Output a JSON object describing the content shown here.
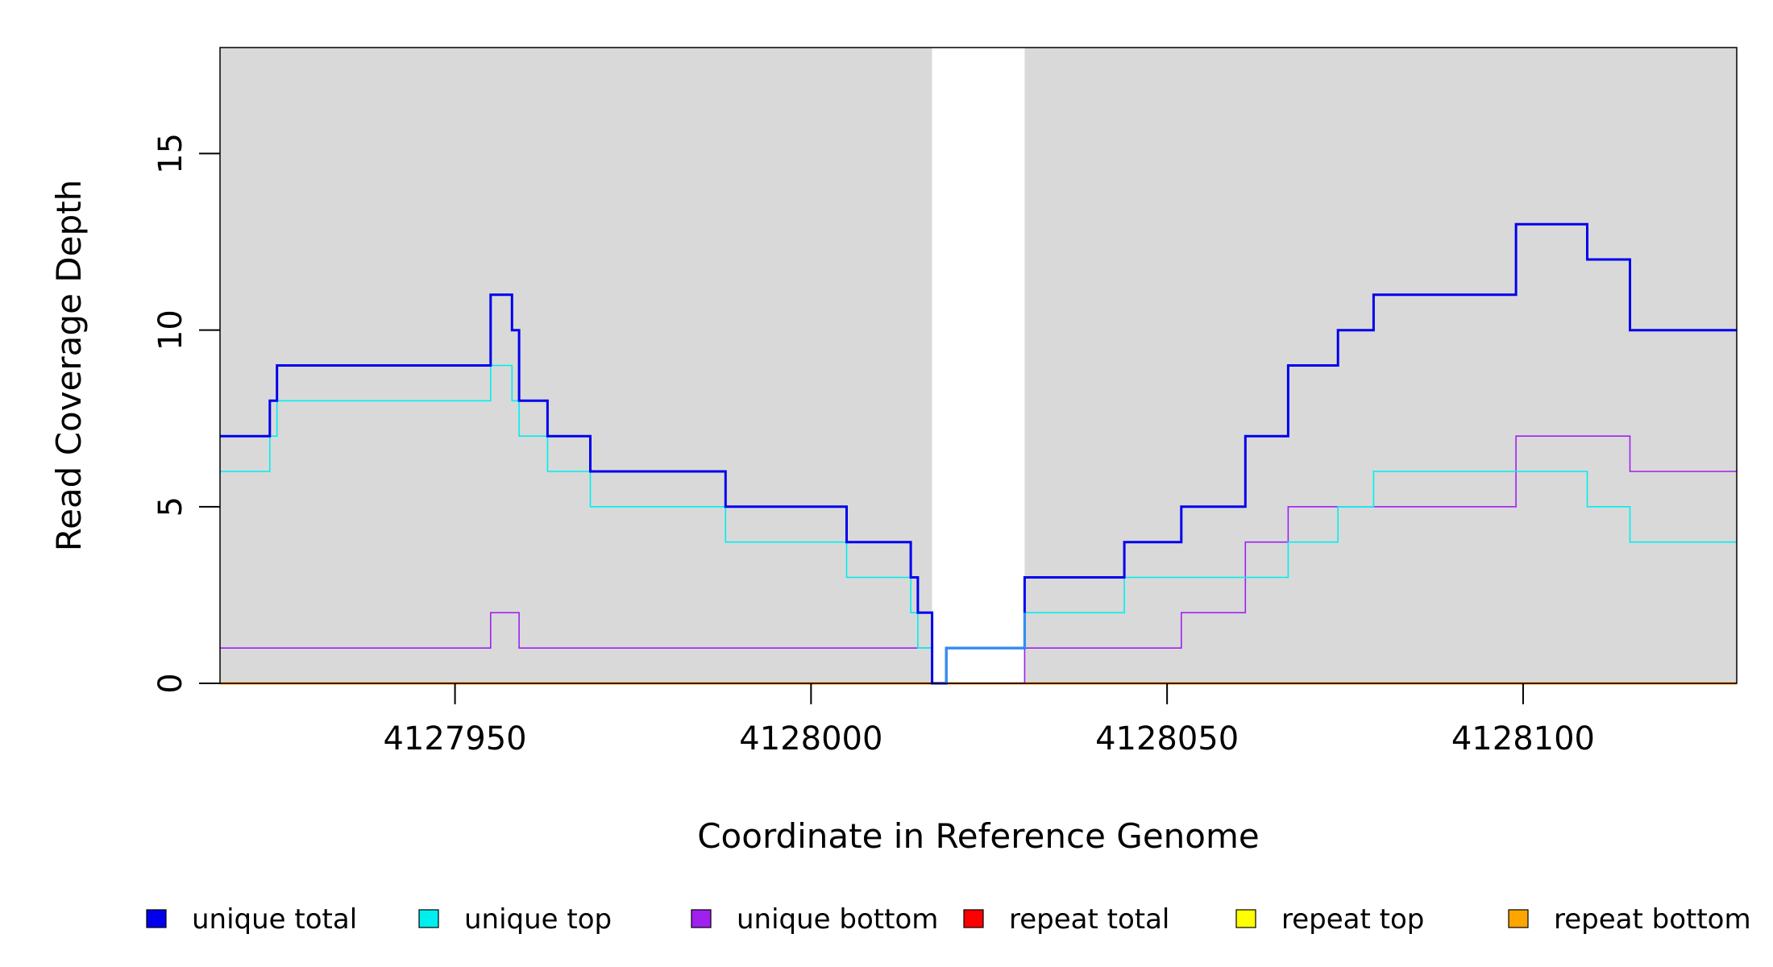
{
  "chart_data": {
    "type": "line",
    "step": true,
    "xlabel": "Coordinate in Reference Genome",
    "ylabel": "Read Coverage Depth",
    "xlim": [
      4127917,
      4128130
    ],
    "ylim": [
      0,
      18
    ],
    "x_ticks": [
      4127950,
      4128000,
      4128050,
      4128100
    ],
    "y_ticks": [
      0,
      5,
      10,
      15
    ],
    "background_color": "#d9d9d9",
    "gap_region": [
      4128017,
      4128030
    ],
    "legend_position": "bottom",
    "series": [
      {
        "name": "unique total",
        "color": "#0000ee",
        "x": [
          4127917,
          4127924,
          4127925,
          4127955,
          4127958,
          4127959,
          4127963,
          4127969,
          4127988,
          4128005,
          4128014,
          4128015,
          4128017,
          4128019,
          4128030,
          4128044,
          4128052,
          4128061,
          4128067,
          4128074,
          4128079,
          4128099,
          4128109,
          4128115,
          4128130
        ],
        "y": [
          7,
          8,
          9,
          11,
          10,
          8,
          7,
          6,
          5,
          4,
          3,
          2,
          0,
          1,
          3,
          4,
          5,
          7,
          9,
          10,
          11,
          13,
          12,
          10,
          10
        ]
      },
      {
        "name": "unique top",
        "color": "#00eeee",
        "x": [
          4127917,
          4127924,
          4127925,
          4127955,
          4127958,
          4127959,
          4127963,
          4127969,
          4127988,
          4128005,
          4128014,
          4128015,
          4128017,
          4128019,
          4128030,
          4128044,
          4128067,
          4128074,
          4128079,
          4128099,
          4128109,
          4128115,
          4128130
        ],
        "y": [
          6,
          7,
          8,
          9,
          8,
          7,
          6,
          5,
          4,
          3,
          2,
          1,
          0,
          1,
          2,
          3,
          4,
          5,
          6,
          6,
          5,
          4,
          4
        ]
      },
      {
        "name": "unique bottom",
        "color": "#a020f0",
        "x": [
          4127917,
          4127955,
          4127959,
          4128017,
          4128030,
          4128052,
          4128061,
          4128067,
          4128099,
          4128115,
          4128130
        ],
        "y": [
          1,
          2,
          1,
          0,
          1,
          2,
          4,
          5,
          7,
          6,
          6
        ]
      },
      {
        "name": "repeat total",
        "color": "#ff0000",
        "x": [
          4127917,
          4128130
        ],
        "y": [
          0,
          0
        ]
      },
      {
        "name": "repeat top",
        "color": "#ffff00",
        "x": [
          4127917,
          4128130
        ],
        "y": [
          0,
          0
        ]
      },
      {
        "name": "repeat bottom",
        "color": "#ffa500",
        "x": [
          4127917,
          4128130
        ],
        "y": [
          0,
          0
        ]
      }
    ]
  }
}
